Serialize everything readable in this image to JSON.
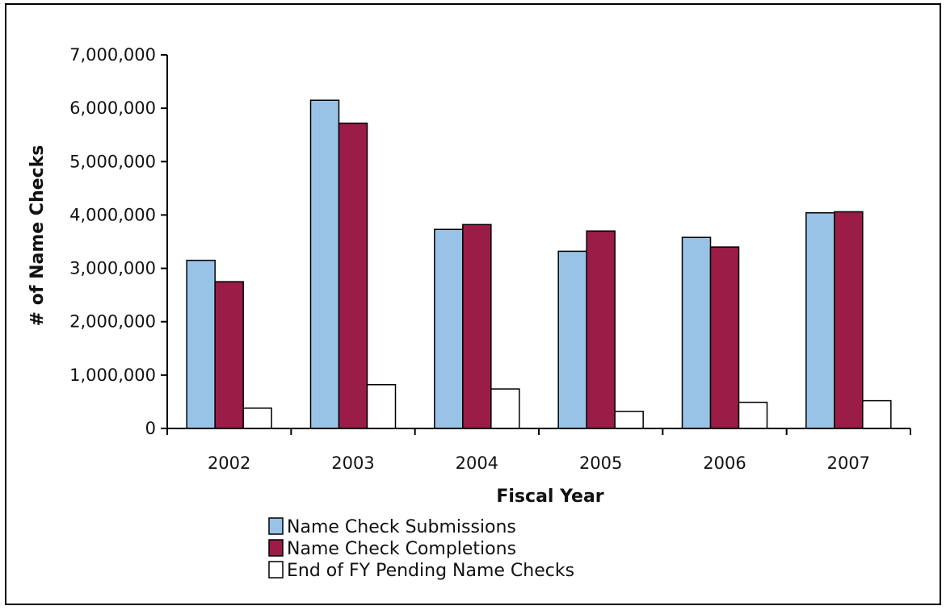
{
  "chart_data": {
    "type": "bar",
    "title": "",
    "xlabel": "Fiscal Year",
    "ylabel": "# of Name Checks",
    "ylim": [
      0,
      7000000
    ],
    "yticks": [
      0,
      1000000,
      2000000,
      3000000,
      4000000,
      5000000,
      6000000,
      7000000
    ],
    "ytick_labels": [
      "0",
      "1,000,000",
      "2,000,000",
      "3,000,000",
      "4,000,000",
      "5,000,000",
      "6,000,000",
      "7,000,000"
    ],
    "categories": [
      "2002",
      "2003",
      "2004",
      "2005",
      "2006",
      "2007"
    ],
    "series": [
      {
        "name": "Name Check Submissions",
        "color": "#99c3e6",
        "values": [
          3150000,
          6150000,
          3730000,
          3320000,
          3580000,
          4040000
        ]
      },
      {
        "name": "Name Check Completions",
        "color": "#9b1c47",
        "values": [
          2750000,
          5720000,
          3820000,
          3700000,
          3400000,
          4060000
        ]
      },
      {
        "name": "End of FY Pending Name Checks",
        "color": "#ffffff",
        "values": [
          380000,
          820000,
          740000,
          320000,
          490000,
          520000
        ]
      }
    ],
    "grid": false,
    "legend_position": "bottom-center"
  }
}
